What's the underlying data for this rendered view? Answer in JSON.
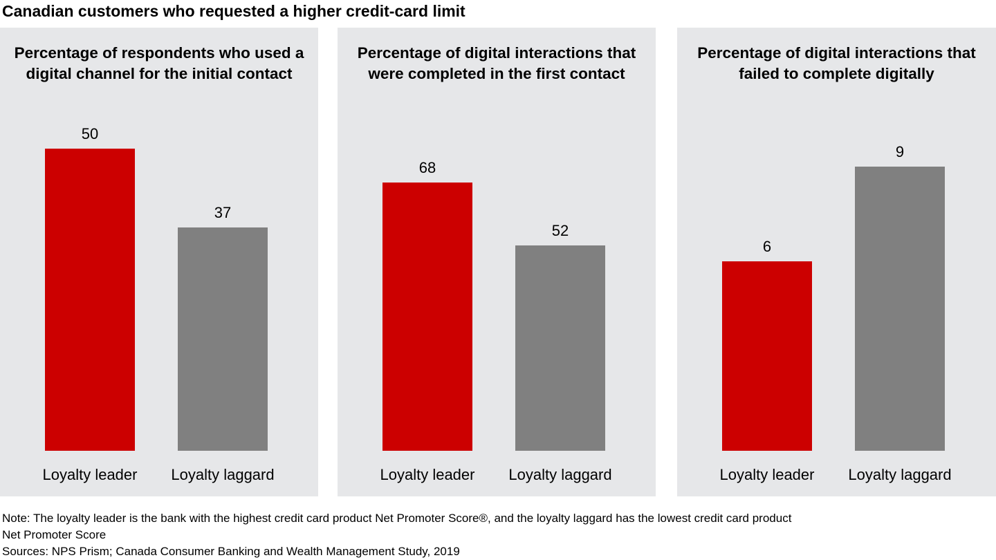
{
  "title": "Canadian customers who requested a higher credit-card limit",
  "colors": {
    "leader": "#cc0000",
    "laggard": "#808080",
    "panel_bg": "#e6e7e9"
  },
  "chart_data": [
    {
      "type": "bar",
      "title": "Percentage of respondents who used a digital channel for the initial contact",
      "categories": [
        "Loyalty leader",
        "Loyalty laggard"
      ],
      "values": [
        50,
        37
      ],
      "ylim": [
        0,
        57.2
      ]
    },
    {
      "type": "bar",
      "title": "Percentage of digital interactions that were completed in the first contact",
      "categories": [
        "Loyalty leader",
        "Loyalty laggard"
      ],
      "values": [
        68,
        52
      ],
      "ylim": [
        0,
        87.6
      ]
    },
    {
      "type": "bar",
      "title": "Percentage of digital interactions that failed to complete digitally",
      "categories": [
        "Loyalty leader",
        "Loyalty laggard"
      ],
      "values": [
        6,
        9
      ],
      "ylim": [
        0,
        10.95
      ]
    }
  ],
  "notes": {
    "note_line1": "Note: The loyalty leader is the bank with the highest credit card product Net Promoter Score®, and the loyalty laggard has the lowest credit card product",
    "note_line2": "Net Promoter Score",
    "sources": "Sources: NPS Prism; Canada Consumer Banking and Wealth Management Study, 2019"
  }
}
